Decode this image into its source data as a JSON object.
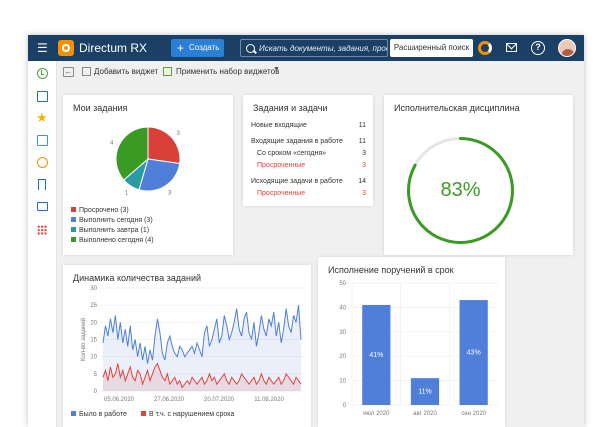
{
  "header": {
    "app_title": "Directum RX",
    "create_label": "Создать",
    "search_placeholder": "Искать документы, задания, проекты...",
    "advanced_search_label": "Расширенный поиск"
  },
  "toolbar": {
    "add_widget_label": "Добавить виджет",
    "apply_set_label": "Применить набор виджетов"
  },
  "colors": {
    "accent": "#2b7fd4",
    "header_bg": "#1c3f66",
    "red": "#e0453a",
    "blue": "#4f7fd9",
    "teal": "#2a9aa3",
    "green": "#3a9b24"
  },
  "my_tasks": {
    "title": "Мои задания",
    "legend": [
      {
        "label": "Просрочено (3)",
        "color": "#d9403a"
      },
      {
        "label": "Выполнить сегодня (3)",
        "color": "#4f7fd9"
      },
      {
        "label": "Выполнить завтра (1)",
        "color": "#2a9aa3"
      },
      {
        "label": "Выполнено сегодня (4)",
        "color": "#3a9b24"
      }
    ]
  },
  "tasks_list": {
    "title": "Задания и задачи",
    "rows": [
      {
        "label": "Новые входящие",
        "value": "11"
      },
      {
        "label": "Входящие задания в работе",
        "value": "11"
      },
      {
        "label": "Со сроком «сегодня»",
        "value": "3"
      },
      {
        "label": "Просроченные",
        "value": "3"
      },
      {
        "label": "Исходящие задачи в работе",
        "value": "14"
      },
      {
        "label": "Просроченные",
        "value": "3"
      }
    ]
  },
  "discipline": {
    "title": "Исполнительская дисциплина",
    "value_label": "83%"
  },
  "dynamics": {
    "title": "Динамика количества заданий",
    "ylabel": "Кол-во заданий",
    "legend": [
      {
        "label": "Было в работе",
        "color": "#4f7fd9"
      },
      {
        "label": "В т.ч. с нарушением срока",
        "color": "#e0453a"
      }
    ]
  },
  "execution": {
    "title": "Исполнение поручений в срок"
  },
  "chart_data": [
    {
      "type": "pie",
      "title": "Мои задания",
      "categories": [
        "Просрочено",
        "Выполнить сегодня",
        "Выполнить завтра",
        "Выполнено сегодня"
      ],
      "values": [
        3,
        3,
        1,
        4
      ],
      "slice_labels": [
        "3",
        "3",
        "1",
        "4"
      ],
      "colors": [
        "#d9403a",
        "#4f7fd9",
        "#2a9aa3",
        "#3a9b24"
      ],
      "legend": "bottom"
    },
    {
      "type": "line",
      "title": "Динамика количества заданий",
      "ylabel": "Кол-во заданий",
      "ylim": [
        0,
        30
      ],
      "y_ticks": [
        0,
        5,
        10,
        15,
        20,
        25,
        30
      ],
      "x_tick_labels": [
        "05.06.2020",
        "27.06.2020",
        "20.07.2020",
        "11.08.2020"
      ],
      "grid": true,
      "legend": "bottom",
      "series": [
        {
          "name": "Было в работе",
          "color": "#4f7fd9",
          "values": [
            14,
            19,
            16,
            21,
            17,
            22,
            15,
            20,
            14,
            18,
            13,
            19,
            12,
            15,
            10,
            14,
            9,
            13,
            8,
            12,
            9,
            16,
            21,
            17,
            11,
            9,
            14,
            16,
            13,
            11,
            10,
            13,
            12,
            10,
            11,
            12,
            13,
            11,
            14,
            12,
            10,
            17,
            19,
            13,
            15,
            18,
            21,
            14,
            16,
            22,
            19,
            15,
            17,
            20,
            24,
            18,
            16,
            21,
            23,
            17,
            15,
            20,
            13,
            17,
            22,
            18,
            16,
            21,
            19,
            23,
            16,
            20,
            14,
            18,
            24,
            19,
            17,
            22,
            20,
            25,
            15
          ]
        },
        {
          "name": "В т.ч. с нарушением срока",
          "color": "#e0453a",
          "values": [
            4,
            6,
            3,
            7,
            4,
            5,
            8,
            4,
            6,
            3,
            5,
            7,
            4,
            3,
            6,
            5,
            2,
            4,
            6,
            3,
            5,
            7,
            8,
            6,
            4,
            3,
            5,
            2,
            3,
            4,
            2,
            3,
            1,
            2,
            3,
            2,
            4,
            3,
            2,
            3,
            4,
            2,
            3,
            5,
            3,
            4,
            2,
            3,
            4,
            5,
            3,
            2,
            4,
            3,
            2,
            3,
            5,
            4,
            3,
            2,
            3,
            4,
            2,
            3,
            5,
            3,
            2,
            4,
            3,
            2,
            3,
            4,
            2,
            3,
            5,
            4,
            3,
            2,
            4,
            3,
            2
          ]
        }
      ]
    },
    {
      "type": "bar",
      "title": "Исполнение поручений в срок",
      "categories": [
        "июл 2020",
        "авг 2020",
        "сен 2020"
      ],
      "values": [
        41,
        11,
        43
      ],
      "data_labels": [
        "41%",
        "11%",
        "43%"
      ],
      "ylim": [
        0,
        50
      ],
      "y_ticks": [
        0,
        10,
        20,
        30,
        40,
        50
      ],
      "color": "#4f7fd9",
      "grid": true
    },
    {
      "type": "pie",
      "title": "Исполнительская дисциплина",
      "values": [
        83,
        17
      ],
      "colors": [
        "#3a9b24",
        "#e5e5e5"
      ],
      "center_label": "83%"
    }
  ]
}
